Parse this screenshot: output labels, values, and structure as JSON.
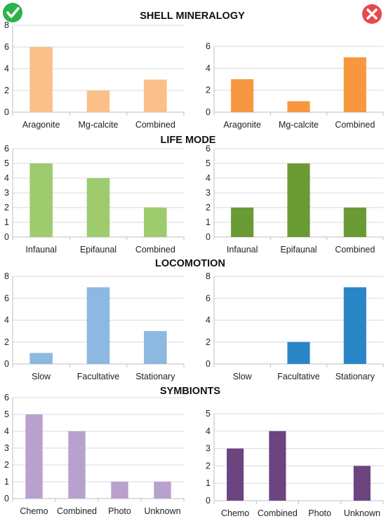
{
  "figure": {
    "check_icon": "check-circle-icon",
    "cross_icon": "x-circle-icon",
    "check_color": "#2bb34a",
    "cross_color": "#e8474c"
  },
  "sections": [
    {
      "id": "shell",
      "title": "SHELL MINERALOGY"
    },
    {
      "id": "life",
      "title": "LIFE MODE"
    },
    {
      "id": "loco",
      "title": "LOCOMOTION"
    },
    {
      "id": "symb",
      "title": "SYMBIONTS"
    }
  ],
  "chart_data": [
    {
      "id": "shell-left",
      "type": "bar",
      "categories": [
        "Aragonite",
        "Mg-calcite",
        "Combined"
      ],
      "values": [
        6,
        2,
        3
      ],
      "ylim": [
        0,
        8
      ],
      "yticks": [
        0,
        2,
        4,
        6,
        8
      ],
      "color": "#fbbf8a",
      "grid": true
    },
    {
      "id": "shell-right",
      "type": "bar",
      "categories": [
        "Aragonite",
        "Mg-calcite",
        "Combined"
      ],
      "values": [
        3,
        1,
        5
      ],
      "ylim": [
        0,
        6
      ],
      "yticks": [
        0,
        2,
        4,
        6
      ],
      "color": "#f79740",
      "grid": true
    },
    {
      "id": "life-left",
      "type": "bar",
      "categories": [
        "Infaunal",
        "Epifaunal",
        "Combined"
      ],
      "values": [
        5,
        4,
        2
      ],
      "ylim": [
        0,
        6
      ],
      "yticks": [
        0,
        1,
        2,
        3,
        4,
        5,
        6
      ],
      "color": "#9dcb6e",
      "grid": true
    },
    {
      "id": "life-right",
      "type": "bar",
      "categories": [
        "Infaunal",
        "Epifaunal",
        "Combined"
      ],
      "values": [
        2,
        5,
        2
      ],
      "ylim": [
        0,
        6
      ],
      "yticks": [
        0,
        1,
        2,
        3,
        4,
        5,
        6
      ],
      "color": "#6a9a34",
      "grid": true
    },
    {
      "id": "loco-left",
      "type": "bar",
      "categories": [
        "Slow",
        "Facultative",
        "Stationary"
      ],
      "values": [
        1,
        7,
        3
      ],
      "ylim": [
        0,
        8
      ],
      "yticks": [
        0,
        2,
        4,
        6,
        8
      ],
      "color": "#8db8e0",
      "grid": true
    },
    {
      "id": "loco-right",
      "type": "bar",
      "categories": [
        "Slow",
        "Facultative",
        "Stationary"
      ],
      "values": [
        0,
        2,
        7
      ],
      "ylim": [
        0,
        8
      ],
      "yticks": [
        0,
        2,
        4,
        6,
        8
      ],
      "color": "#2a85c6",
      "grid": true
    },
    {
      "id": "symb-left",
      "type": "bar",
      "categories": [
        "Chemo",
        "Combined",
        "Photo",
        "Unknown"
      ],
      "values": [
        5,
        4,
        1,
        1
      ],
      "ylim": [
        0,
        6
      ],
      "yticks": [
        0,
        1,
        2,
        3,
        4,
        5,
        6
      ],
      "color": "#b9a1cf",
      "grid": true
    },
    {
      "id": "symb-right",
      "type": "bar",
      "categories": [
        "Chemo",
        "Combined",
        "Photo",
        "Unknown"
      ],
      "values": [
        3,
        4,
        0,
        2
      ],
      "ylim": [
        0,
        5
      ],
      "yticks": [
        0,
        1,
        2,
        3,
        4,
        5
      ],
      "color": "#6b4480",
      "grid": true
    }
  ]
}
